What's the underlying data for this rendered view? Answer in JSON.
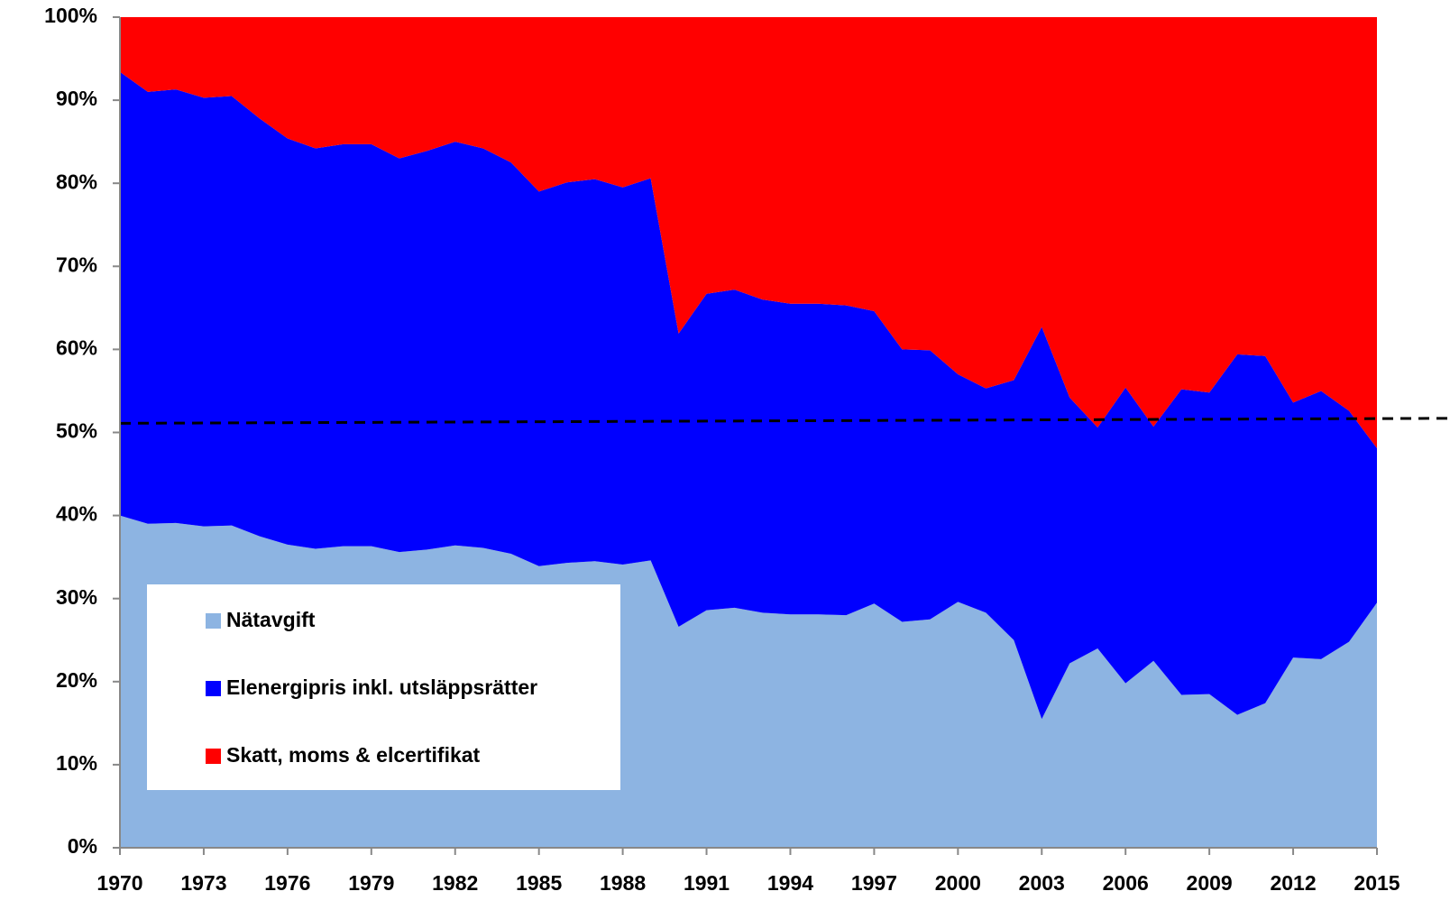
{
  "chart_data": {
    "type": "stacked_area",
    "x": [
      1970,
      1971,
      1972,
      1973,
      1974,
      1975,
      1976,
      1977,
      1978,
      1979,
      1980,
      1981,
      1982,
      1983,
      1984,
      1985,
      1986,
      1987,
      1988,
      1989,
      1990,
      1991,
      1992,
      1993,
      1994,
      1995,
      1996,
      1997,
      1998,
      1999,
      2000,
      2001,
      2002,
      2003,
      2004,
      2005,
      2006,
      2007,
      2008,
      2009,
      2010,
      2011,
      2012,
      2013,
      2014,
      2015
    ],
    "series": [
      {
        "name": "Nätavgift",
        "color": "#8db4e2",
        "values": [
          40,
          39,
          39.1,
          38.7,
          38.8,
          37.5,
          36.5,
          36,
          36.3,
          36.3,
          35.6,
          35.9,
          36.4,
          36.1,
          35.4,
          33.9,
          34.3,
          34.5,
          34.1,
          34.6,
          26.6,
          28.6,
          28.9,
          28.3,
          28.1,
          28.1,
          28,
          29.4,
          27.2,
          27.5,
          29.6,
          28.3,
          25,
          15.5,
          22.2,
          24,
          19.8,
          22.5,
          18.4,
          18.5,
          16,
          17.4,
          22.9,
          22.7,
          24.8,
          29.5
        ]
      },
      {
        "name": "Elenergipris inkl. utsläppsrätter",
        "color": "#0000ff",
        "values": [
          53.4,
          52,
          52.2,
          51.6,
          51.7,
          50.3,
          48.9,
          48.2,
          48.4,
          48.4,
          47.4,
          48,
          48.6,
          48.1,
          47.1,
          45.1,
          45.8,
          46,
          45.4,
          46,
          35.3,
          38.1,
          38.3,
          37.7,
          37.4,
          37.4,
          37.3,
          35.2,
          32.8,
          32.4,
          27.4,
          27,
          31.3,
          47.2,
          32,
          26.6,
          35.6,
          28.2,
          36.8,
          36.3,
          43.4,
          41.8,
          30.7,
          32.3,
          27.8,
          18.6
        ]
      },
      {
        "name": "Skatt, moms & elcertifikat",
        "color": "#ff0000",
        "values": [
          6.6,
          9,
          8.7,
          9.7,
          9.5,
          12.2,
          14.6,
          15.8,
          15.3,
          15.3,
          17,
          16.1,
          15,
          15.8,
          17.5,
          21,
          19.9,
          19.5,
          20.5,
          19.4,
          38.1,
          33.3,
          32.8,
          34,
          34.5,
          34.5,
          34.7,
          35.4,
          40,
          40.1,
          43,
          44.7,
          43.7,
          37.3,
          45.8,
          49.4,
          44.6,
          49.3,
          44.8,
          45.2,
          40.6,
          40.8,
          46.4,
          45,
          47.4,
          51.9
        ]
      }
    ],
    "xlim": [
      1970,
      2015
    ],
    "xticks": [
      1970,
      1973,
      1976,
      1979,
      1982,
      1985,
      1988,
      1991,
      1994,
      1997,
      2000,
      2003,
      2006,
      2009,
      2012,
      2015
    ],
    "ylim": [
      0,
      100
    ],
    "yticks": [
      {
        "value": 0,
        "label": "0%"
      },
      {
        "value": 10,
        "label": "10%"
      },
      {
        "value": 20,
        "label": "20%"
      },
      {
        "value": 30,
        "label": "30%"
      },
      {
        "value": 40,
        "label": "40%"
      },
      {
        "value": 50,
        "label": "50%"
      },
      {
        "value": 60,
        "label": "60%"
      },
      {
        "value": 70,
        "label": "70%"
      },
      {
        "value": 80,
        "label": "80%"
      },
      {
        "value": 90,
        "label": "90%"
      },
      {
        "value": 100,
        "label": "100%"
      }
    ],
    "reference_line": [
      51.1,
      51.7
    ],
    "legend": "lower left"
  }
}
